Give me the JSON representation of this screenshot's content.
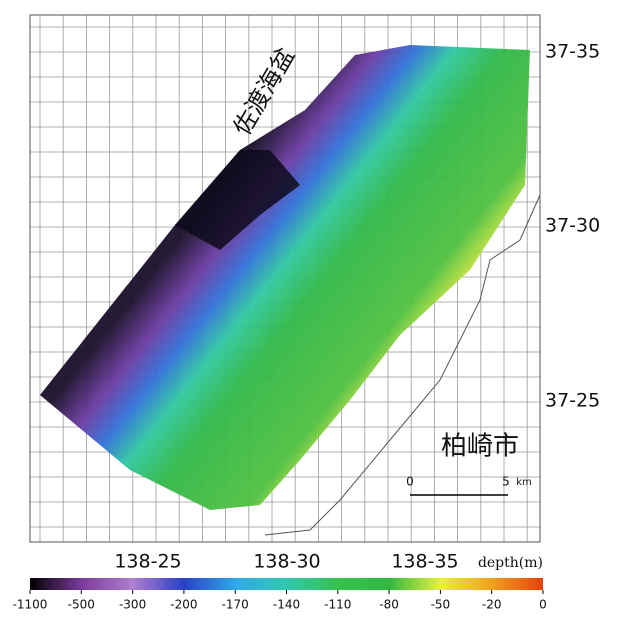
{
  "map": {
    "sea_label": "佐渡海盆",
    "city_label": "柏崎市",
    "lat_labels": [
      "37-35",
      "37-30",
      "37-25"
    ],
    "lon_labels": [
      "138-25",
      "138-30",
      "138-35"
    ],
    "scale_bar": {
      "start": "0",
      "end": "5",
      "unit": "km"
    }
  },
  "colorbar": {
    "title": "depth(m)",
    "ticks": [
      -1100,
      -500,
      -300,
      -200,
      -170,
      -140,
      -110,
      -80,
      -50,
      -20,
      0
    ],
    "colors": [
      "#000000",
      "#7a3a9a",
      "#b07fd0",
      "#2840c8",
      "#30a8e8",
      "#30c8b0",
      "#38c050",
      "#30b840",
      "#e8f040",
      "#f0a020",
      "#e84010"
    ]
  }
}
